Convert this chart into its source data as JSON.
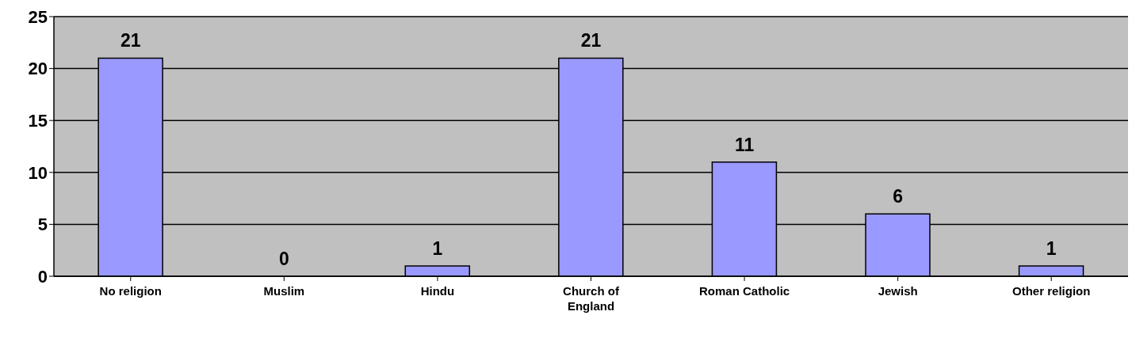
{
  "chart_data": {
    "type": "bar",
    "categories": [
      "No religion",
      "Muslim",
      "Hindu",
      "Church of England",
      "Roman Catholic",
      "Jewish",
      "Other religion"
    ],
    "values": [
      21,
      0,
      1,
      21,
      11,
      6,
      1
    ],
    "color": "#9999ff",
    "ylim": [
      0,
      25
    ],
    "yticks": [
      0,
      5,
      10,
      15,
      20,
      25
    ],
    "grid": "y",
    "data_labels": true,
    "legend": false
  }
}
